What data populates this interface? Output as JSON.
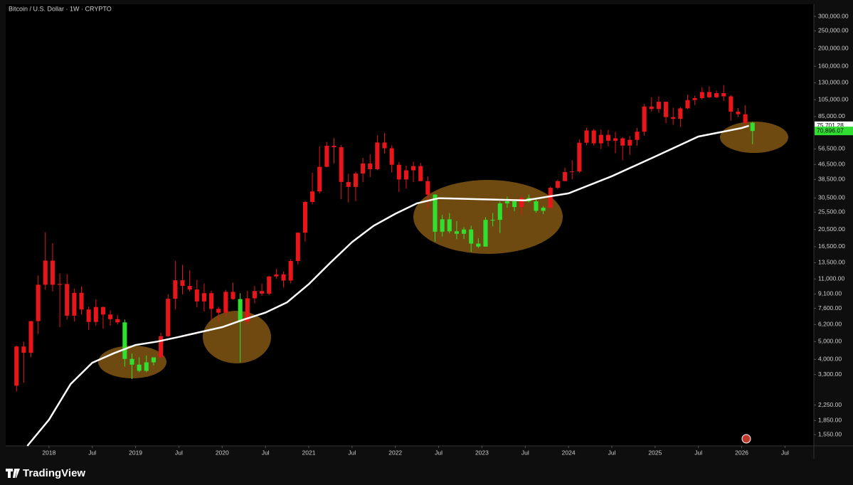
{
  "chart_data": {
    "type": "candlestick",
    "title": "Bitcoin / U.S. Dollar · 1W · CRYPTO",
    "brand": "TradingView",
    "log_scale": true,
    "grid": false,
    "color_above_ma": "#e8151b",
    "color_below_ma": "#30e030",
    "ma_color": "#ffffff",
    "ylim": [
      1345,
      368600
    ],
    "yticks": [
      {
        "value": 300000,
        "label": "300,000.00"
      },
      {
        "value": 250000,
        "label": "250,000.00"
      },
      {
        "value": 200000,
        "label": "200,000.00"
      },
      {
        "value": 160000,
        "label": "160,000.00"
      },
      {
        "value": 130000,
        "label": "130,000.00"
      },
      {
        "value": 105000,
        "label": "105,000.00"
      },
      {
        "value": 85000,
        "label": "85,000.00"
      },
      {
        "value": 56500,
        "label": "56,500.00"
      },
      {
        "value": 46500,
        "label": "46,500.00"
      },
      {
        "value": 38500,
        "label": "38,500.00"
      },
      {
        "value": 30500,
        "label": "30,500.00"
      },
      {
        "value": 25500,
        "label": "25,500.00"
      },
      {
        "value": 20500,
        "label": "20,500.00"
      },
      {
        "value": 16500,
        "label": "16,500.00"
      },
      {
        "value": 13500,
        "label": "13,500.00"
      },
      {
        "value": 11000,
        "label": "11,000.00"
      },
      {
        "value": 9100,
        "label": "9,100.00"
      },
      {
        "value": 7600,
        "label": "7,600.00"
      },
      {
        "value": 6200,
        "label": "6,200.00"
      },
      {
        "value": 5000,
        "label": "5,000.00"
      },
      {
        "value": 4000,
        "label": "4,000.00"
      },
      {
        "value": 3300,
        "label": "3,300.00"
      },
      {
        "value": 2250,
        "label": "2,250.00"
      },
      {
        "value": 1850,
        "label": "1,850.00"
      },
      {
        "value": 1550,
        "label": "1,550.00"
      }
    ],
    "xlim": [
      "2017-07",
      "2026-11"
    ],
    "xticks": [
      {
        "value": "2018-01",
        "label": "2018"
      },
      {
        "value": "2018-07",
        "label": "Jul"
      },
      {
        "value": "2019-01",
        "label": "2019"
      },
      {
        "value": "2019-07",
        "label": "Jul"
      },
      {
        "value": "2020-01",
        "label": "2020"
      },
      {
        "value": "2020-07",
        "label": "Jul"
      },
      {
        "value": "2021-01",
        "label": "2021"
      },
      {
        "value": "2021-07",
        "label": "Jul"
      },
      {
        "value": "2022-01",
        "label": "2022"
      },
      {
        "value": "2022-07",
        "label": "Jul"
      },
      {
        "value": "2023-01",
        "label": "2023"
      },
      {
        "value": "2023-07",
        "label": "Jul"
      },
      {
        "value": "2024-01",
        "label": "2024"
      },
      {
        "value": "2024-07",
        "label": "Jul"
      },
      {
        "value": "2025-01",
        "label": "2025"
      },
      {
        "value": "2025-07",
        "label": "Jul"
      },
      {
        "value": "2026-01",
        "label": "2026"
      },
      {
        "value": "2026-07",
        "label": "Jul"
      }
    ],
    "price_labels": [
      {
        "value": 75701.28,
        "label": "75,701.28",
        "color": "#ffffff"
      },
      {
        "value": 70896.07,
        "label": "70,896.07",
        "color": "#30e030"
      }
    ],
    "candles": {
      "x": [
        "2017-08",
        "2017-09",
        "2017-10",
        "2017-11",
        "2017-12",
        "2018-01",
        "2018-02",
        "2018-03",
        "2018-04",
        "2018-05",
        "2018-06",
        "2018-07",
        "2018-08",
        "2018-09",
        "2018-10",
        "2018-11",
        "2018-12",
        "2019-01",
        "2019-02",
        "2019-03",
        "2019-04",
        "2019-05",
        "2019-06",
        "2019-07",
        "2019-08",
        "2019-09",
        "2019-10",
        "2019-11",
        "2019-12",
        "2020-01",
        "2020-02",
        "2020-03",
        "2020-04",
        "2020-05",
        "2020-06",
        "2020-07",
        "2020-08",
        "2020-09",
        "2020-10",
        "2020-11",
        "2020-12",
        "2021-01",
        "2021-02",
        "2021-03",
        "2021-04",
        "2021-05",
        "2021-06",
        "2021-07",
        "2021-08",
        "2021-09",
        "2021-10",
        "2021-11",
        "2021-12",
        "2022-01",
        "2022-02",
        "2022-03",
        "2022-04",
        "2022-05",
        "2022-06",
        "2022-07",
        "2022-08",
        "2022-09",
        "2022-10",
        "2022-11",
        "2022-12",
        "2023-01",
        "2023-02",
        "2023-03",
        "2023-04",
        "2023-05",
        "2023-06",
        "2023-07",
        "2023-08",
        "2023-09",
        "2023-10",
        "2023-11",
        "2023-12",
        "2024-01",
        "2024-02",
        "2024-03",
        "2024-04",
        "2024-05",
        "2024-06",
        "2024-07",
        "2024-08",
        "2024-09",
        "2024-10",
        "2024-11",
        "2024-12",
        "2025-01",
        "2025-02",
        "2025-03",
        "2025-04",
        "2025-05",
        "2025-06",
        "2025-07",
        "2025-08",
        "2025-09",
        "2025-10",
        "2025-11",
        "2025-12",
        "2026-01",
        "2026-02"
      ],
      "open": [
        2870,
        4700,
        4340,
        6470,
        10230,
        13860,
        10220,
        10330,
        6930,
        9240,
        7490,
        6400,
        7730,
        7030,
        6630,
        6370,
        4020,
        3740,
        3460,
        3850,
        4100,
        5350,
        8570,
        10820,
        10080,
        9630,
        8290,
        9200,
        7550,
        7190,
        9350,
        8540,
        6430,
        8620,
        9450,
        9140,
        11350,
        11650,
        10780,
        13800,
        19700,
        29000,
        33100,
        45140,
        58800,
        57750,
        37300,
        35040,
        41460,
        47100,
        43790,
        61300,
        57000,
        46300,
        38480,
        43190,
        45540,
        37710,
        31790,
        19940,
        23300,
        20050,
        19430,
        20500,
        17170,
        16540,
        23140,
        23150,
        28480,
        29240,
        27220,
        30480,
        29230,
        25940,
        26970,
        34660,
        37720,
        42280,
        42580,
        61130,
        71330,
        60640,
        67490,
        62680,
        64620,
        58970,
        63330,
        70220,
        96410,
        93430,
        102400,
        84350,
        82550,
        94200,
        104600,
        107150,
        115750,
        108250,
        114050,
        109600,
        90400,
        87500,
        78600
      ],
      "high": [
        4750,
        5000,
        6470,
        11500,
        19800,
        17250,
        11800,
        11700,
        9750,
        9990,
        7760,
        8500,
        7760,
        7410,
        7000,
        6600,
        4300,
        4100,
        4200,
        4100,
        5600,
        9070,
        13800,
        13130,
        12300,
        10900,
        10400,
        9500,
        7750,
        9580,
        10500,
        9190,
        9460,
        10070,
        10380,
        11450,
        12470,
        12100,
        14100,
        19800,
        29300,
        41950,
        58350,
        61790,
        64850,
        59500,
        41300,
        42400,
        50500,
        52900,
        67000,
        69000,
        59050,
        47990,
        45800,
        48200,
        47450,
        40000,
        31950,
        24650,
        25200,
        22800,
        21100,
        21480,
        18390,
        23950,
        25250,
        29200,
        31000,
        29820,
        31400,
        31800,
        30200,
        27500,
        35200,
        38430,
        44700,
        48970,
        63900,
        73800,
        72700,
        71950,
        71950,
        70000,
        65600,
        66500,
        73600,
        99600,
        108300,
        109600,
        102500,
        95000,
        95750,
        112000,
        110600,
        123200,
        124450,
        117900,
        126200,
        111200,
        94600,
        97900,
        79500
      ],
      "low": [
        2670,
        2970,
        4110,
        5500,
        9600,
        9400,
        6000,
        6600,
        6430,
        7030,
        5780,
        6120,
        5880,
        6100,
        6200,
        3650,
        3120,
        3400,
        3400,
        3700,
        4100,
        5300,
        7500,
        9070,
        9400,
        7700,
        7300,
        6550,
        6430,
        6870,
        8470,
        3850,
        6200,
        8100,
        8900,
        8980,
        11000,
        9880,
        10400,
        13200,
        17600,
        28130,
        32300,
        44950,
        47000,
        30000,
        28800,
        29300,
        37300,
        39600,
        43300,
        53300,
        42000,
        32950,
        34320,
        37200,
        37700,
        26700,
        17600,
        18800,
        19550,
        18150,
        18200,
        15480,
        16250,
        16500,
        21350,
        19600,
        26950,
        25800,
        24800,
        28860,
        25300,
        24900,
        26560,
        34100,
        37600,
        38500,
        41880,
        59300,
        59100,
        56550,
        58400,
        53500,
        49100,
        52550,
        58900,
        66800,
        90500,
        89200,
        78200,
        76600,
        74400,
        93400,
        98200,
        105100,
        107300,
        107300,
        103500,
        80600,
        84500,
        74500,
        60000
      ],
      "close": [
        4700,
        4340,
        6470,
        10230,
        13860,
        10220,
        10330,
        6930,
        9240,
        7490,
        6400,
        7730,
        7030,
        6630,
        6370,
        4020,
        3740,
        3460,
        3850,
        4100,
        5350,
        8570,
        10820,
        10080,
        9630,
        8290,
        9200,
        7550,
        7190,
        9350,
        8540,
        6430,
        8620,
        9450,
        9140,
        11350,
        11650,
        10780,
        13800,
        19700,
        29000,
        33100,
        45140,
        58800,
        57750,
        37300,
        35040,
        41460,
        47100,
        43790,
        61300,
        57000,
        46300,
        38480,
        43190,
        45540,
        37710,
        31790,
        19940,
        23300,
        20050,
        19430,
        20500,
        17170,
        16540,
        23140,
        23150,
        28480,
        29240,
        27220,
        30480,
        29230,
        25940,
        26970,
        34660,
        37720,
        42280,
        42580,
        61130,
        71330,
        60640,
        67490,
        62680,
        64620,
        58970,
        63330,
        70220,
        96410,
        93430,
        102400,
        84350,
        82550,
        94200,
        104600,
        107150,
        115750,
        108250,
        114050,
        109600,
        90400,
        87500,
        78600,
        70896.07
      ]
    },
    "ma": {
      "x": [
        "2017-10",
        "2018-01",
        "2018-04",
        "2018-07",
        "2018-10",
        "2019-01",
        "2019-04",
        "2019-07",
        "2020-01",
        "2020-04",
        "2020-07",
        "2020-10",
        "2021-01",
        "2021-04",
        "2021-07",
        "2021-10",
        "2022-01",
        "2022-04",
        "2022-07",
        "2023-01",
        "2023-07",
        "2024-01",
        "2024-07",
        "2025-01",
        "2025-07",
        "2026-01",
        "2026-02"
      ],
      "values": [
        1345,
        1870,
        2930,
        3830,
        4320,
        4790,
        5000,
        5300,
        6000,
        6600,
        7200,
        8200,
        10300,
        13500,
        17500,
        21500,
        25000,
        28500,
        30400,
        30000,
        29600,
        32300,
        40100,
        51400,
        66100,
        73600,
        75701.28
      ]
    }
  }
}
